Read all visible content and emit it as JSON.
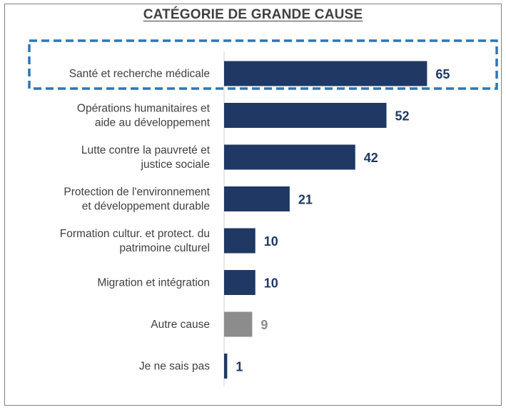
{
  "chart_data": {
    "type": "bar",
    "orientation": "horizontal",
    "title": "CATÉGORIE DE GRANDE CAUSE",
    "categories": [
      [
        "Santé et recherche médicale"
      ],
      [
        "Opérations humanitaires et",
        "aide au développement"
      ],
      [
        "Lutte contre la pauvreté et",
        "justice sociale"
      ],
      [
        "Protection de l'environnement",
        "et développement durable"
      ],
      [
        "Formation cultur. et protect. du",
        "patrimoine culturel"
      ],
      [
        "Migration et intégration"
      ],
      [
        "Autre cause"
      ],
      [
        "Je ne sais pas"
      ]
    ],
    "values": [
      65,
      52,
      42,
      21,
      10,
      10,
      9,
      1
    ],
    "bar_colors": [
      "#1f3864",
      "#1f3864",
      "#1f3864",
      "#1f3864",
      "#1f3864",
      "#1f3864",
      "#8c8c8c",
      "#1f3864"
    ],
    "value_label_colors": [
      "#1f3864",
      "#1f3864",
      "#1f3864",
      "#1f3864",
      "#1f3864",
      "#1f3864",
      "#8c8c8c",
      "#1f3864"
    ],
    "highlighted_category": "Santé et recherche médicale",
    "highlight_color": "#2e75b6",
    "xlim": [
      0,
      65
    ],
    "grid": false,
    "legend": "none",
    "xlabel": "",
    "ylabel": ""
  }
}
